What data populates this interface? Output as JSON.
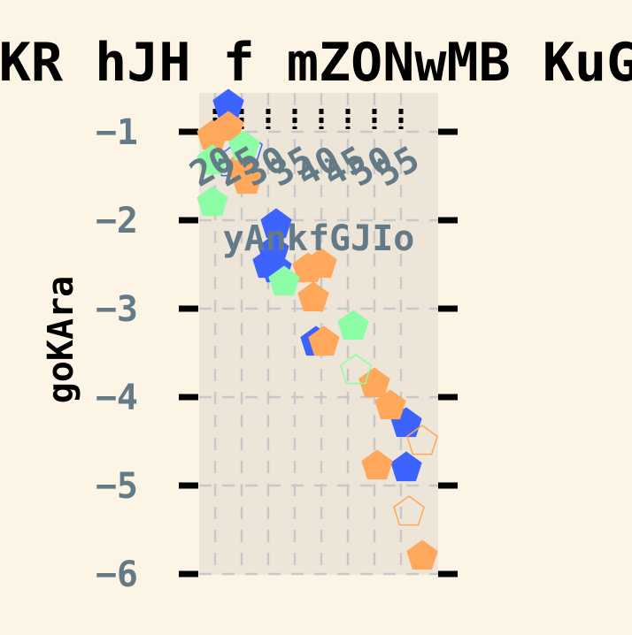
{
  "chart_data": {
    "type": "scatter",
    "title": "KR hJH f mZONwMB KuG",
    "xlabel": "yAnkfGJIo",
    "ylabel": "goKAra",
    "xlim": [
      17,
      62
    ],
    "ylim": [
      -6.0,
      -0.56
    ],
    "x_ticks": [
      20,
      25,
      30,
      35,
      40,
      45,
      50,
      55
    ],
    "x_tick_labels": [
      "20",
      "25",
      "30",
      "35",
      "40",
      "45",
      "50",
      "55"
    ],
    "y_ticks": [
      -1,
      -2,
      -3,
      -4,
      -5,
      -6
    ],
    "y_tick_labels": [
      "−1",
      "−2",
      "−3",
      "−4",
      "−5",
      "−6"
    ],
    "x_tick_position": "top, inside plot",
    "y_tick_position": "left",
    "grid": true,
    "legend": "none",
    "colors": {
      "page_background": "#fcf5e5",
      "plot_background": "#ede6d8",
      "grid": "#c8c8c8",
      "tick_label": "#647b87",
      "title": "#000000"
    },
    "series": [
      {
        "color": "#3d63ff",
        "points": [
          {
            "x": 22.5,
            "y": -0.7,
            "filled": true
          },
          {
            "x": 23.0,
            "y": -1.35,
            "filled": false
          },
          {
            "x": 26.0,
            "y": -1.2,
            "filled": false
          },
          {
            "x": 31.5,
            "y": -2.05,
            "filled": true
          },
          {
            "x": 31.0,
            "y": -2.35,
            "filled": true
          },
          {
            "x": 30.0,
            "y": -2.5,
            "filled": true
          },
          {
            "x": 31.5,
            "y": -2.55,
            "filled": true
          },
          {
            "x": 39.0,
            "y": -3.38,
            "filled": true
          },
          {
            "x": 56.0,
            "y": -4.3,
            "filled": true
          },
          {
            "x": 56.0,
            "y": -4.8,
            "filled": true
          }
        ]
      },
      {
        "color": "#ffa75a",
        "points": [
          {
            "x": 22.5,
            "y": -0.95,
            "filled": true
          },
          {
            "x": 19.5,
            "y": -1.05,
            "filled": true
          },
          {
            "x": 25.0,
            "y": -1.4,
            "filled": true
          },
          {
            "x": 26.0,
            "y": -1.55,
            "filled": true
          },
          {
            "x": 37.5,
            "y": -2.55,
            "filled": true
          },
          {
            "x": 40.0,
            "y": -2.5,
            "filled": true
          },
          {
            "x": 38.5,
            "y": -2.88,
            "filled": true
          },
          {
            "x": 40.5,
            "y": -3.38,
            "filled": true
          },
          {
            "x": 50.0,
            "y": -3.85,
            "filled": true
          },
          {
            "x": 53.0,
            "y": -4.1,
            "filled": true
          },
          {
            "x": 59.0,
            "y": -4.5,
            "filled": false
          },
          {
            "x": 50.5,
            "y": -4.78,
            "filled": true
          },
          {
            "x": 56.5,
            "y": -5.3,
            "filled": false
          },
          {
            "x": 59.0,
            "y": -5.8,
            "filled": true
          }
        ]
      },
      {
        "color": "#8dfca6",
        "points": [
          {
            "x": 19.5,
            "y": -1.33,
            "filled": true
          },
          {
            "x": 25.5,
            "y": -1.17,
            "filled": true
          },
          {
            "x": 19.5,
            "y": -1.8,
            "filled": true
          },
          {
            "x": 33.0,
            "y": -2.7,
            "filled": true
          },
          {
            "x": 46.0,
            "y": -3.2,
            "filled": true
          },
          {
            "x": 46.5,
            "y": -3.7,
            "filled": false
          }
        ]
      }
    ]
  }
}
